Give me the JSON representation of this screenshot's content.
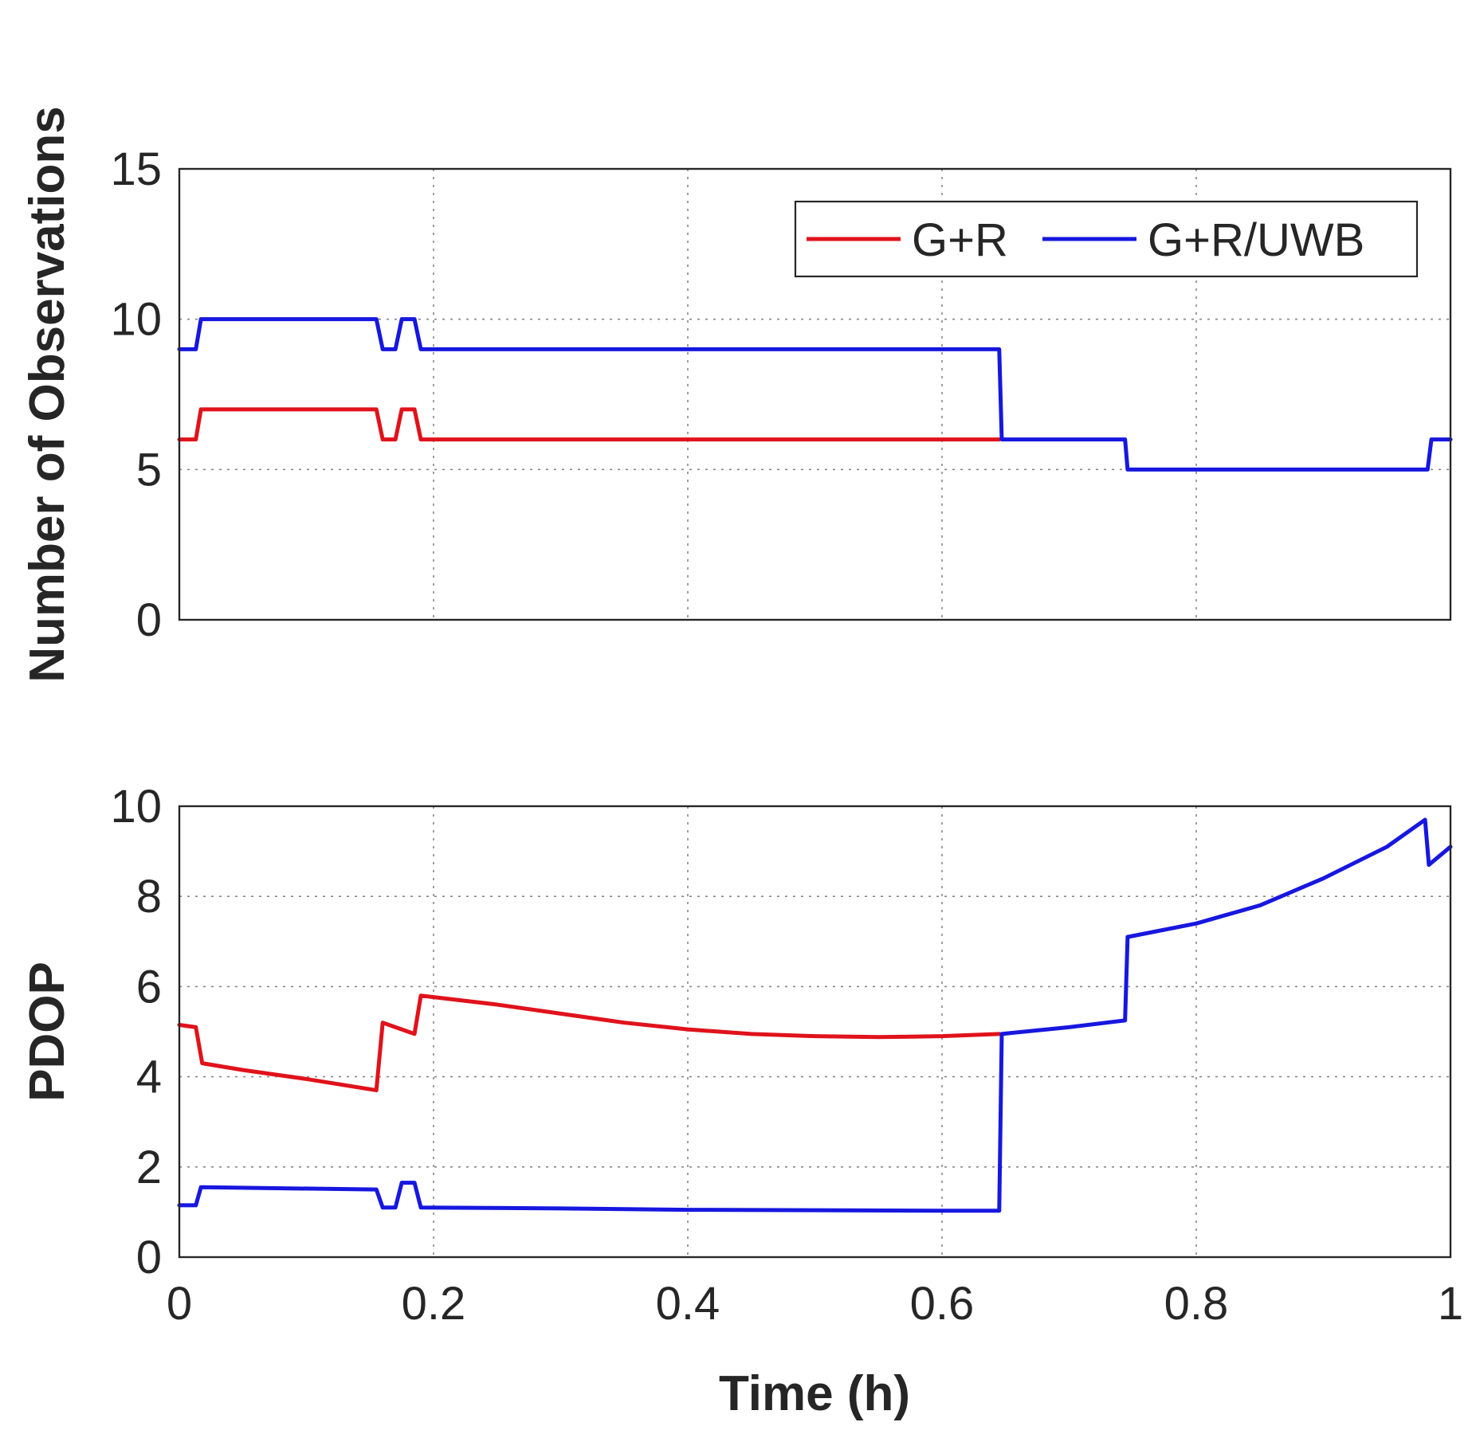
{
  "chart_data": [
    {
      "type": "line",
      "id": "observations",
      "title": "",
      "xlabel": "",
      "ylabel": "Number of Observations",
      "xlim": [
        0,
        1
      ],
      "ylim": [
        0,
        15
      ],
      "xticks": [
        0,
        0.2,
        0.4,
        0.6,
        0.8,
        1
      ],
      "xtick_labels": [
        "",
        "",
        "",
        "",
        "",
        ""
      ],
      "yticks": [
        0,
        5,
        10,
        15
      ],
      "ytick_labels": [
        "0",
        "5",
        "10",
        "15"
      ],
      "grid": true,
      "legend": {
        "location": "top-right",
        "entries": [
          {
            "label": "G+R",
            "color": "#e0121b"
          },
          {
            "label": "G+R/UWB",
            "color": "#1717e0"
          }
        ]
      },
      "series": [
        {
          "name": "G+R",
          "color": "#e0121b",
          "x": [
            0,
            0.013,
            0.017,
            0.155,
            0.16,
            0.17,
            0.175,
            0.185,
            0.19,
            0.645
          ],
          "y": [
            6,
            6,
            7,
            7,
            6,
            6,
            7,
            7,
            6,
            6
          ]
        },
        {
          "name": "G+R/UWB",
          "color": "#1717e0",
          "x": [
            0,
            0.013,
            0.017,
            0.155,
            0.16,
            0.17,
            0.175,
            0.185,
            0.19,
            0.645,
            0.647,
            0.744,
            0.746,
            0.982,
            0.985,
            1
          ],
          "y": [
            9,
            9,
            10,
            10,
            9,
            9,
            10,
            10,
            9,
            9,
            6,
            6,
            5,
            5,
            6,
            6
          ]
        }
      ]
    },
    {
      "type": "line",
      "id": "pdop",
      "title": "",
      "xlabel": "Time (h)",
      "ylabel": "PDOP",
      "xlim": [
        0,
        1
      ],
      "ylim": [
        0,
        10
      ],
      "xticks": [
        0,
        0.2,
        0.4,
        0.6,
        0.8,
        1
      ],
      "xtick_labels": [
        "0",
        "0.2",
        "0.4",
        "0.6",
        "0.8",
        "1"
      ],
      "yticks": [
        0,
        2,
        4,
        6,
        8,
        10
      ],
      "ytick_labels": [
        "0",
        "2",
        "4",
        "6",
        "8",
        "10"
      ],
      "grid": true,
      "series": [
        {
          "name": "G+R",
          "color": "#e0121b",
          "x": [
            0,
            0.013,
            0.018,
            0.05,
            0.1,
            0.155,
            0.16,
            0.17,
            0.185,
            0.19,
            0.25,
            0.3,
            0.35,
            0.4,
            0.45,
            0.5,
            0.55,
            0.6,
            0.645
          ],
          "y": [
            5.15,
            5.1,
            4.3,
            4.15,
            3.95,
            3.7,
            5.2,
            5.1,
            4.95,
            5.8,
            5.6,
            5.4,
            5.2,
            5.05,
            4.95,
            4.9,
            4.88,
            4.9,
            4.95
          ]
        },
        {
          "name": "G+R/UWB",
          "color": "#1717e0",
          "x": [
            0,
            0.013,
            0.017,
            0.155,
            0.16,
            0.17,
            0.175,
            0.185,
            0.19,
            0.3,
            0.4,
            0.5,
            0.6,
            0.645,
            0.647,
            0.7,
            0.744,
            0.746,
            0.8,
            0.85,
            0.9,
            0.95,
            0.98,
            0.983,
            1
          ],
          "y": [
            1.15,
            1.15,
            1.55,
            1.5,
            1.1,
            1.1,
            1.65,
            1.65,
            1.1,
            1.08,
            1.05,
            1.04,
            1.03,
            1.03,
            4.95,
            5.1,
            5.25,
            7.1,
            7.4,
            7.8,
            8.4,
            9.1,
            9.7,
            8.7,
            9.1
          ]
        }
      ]
    }
  ]
}
